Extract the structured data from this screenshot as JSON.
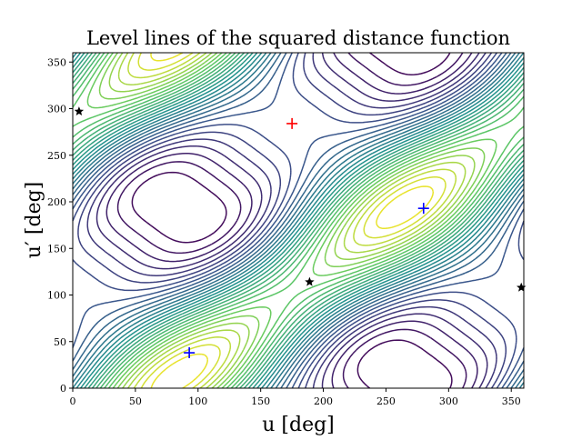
{
  "chart_data": {
    "type": "contour",
    "title": "Level lines of the squared distance function",
    "xlabel": "u [deg]",
    "ylabel": "u′ [deg]",
    "xlim": [
      0,
      360
    ],
    "ylim": [
      0,
      360
    ],
    "xticks": [
      0,
      50,
      100,
      150,
      200,
      250,
      300,
      350
    ],
    "yticks": [
      0,
      50,
      100,
      150,
      200,
      250,
      300,
      350
    ],
    "grid": false,
    "colormap": "viridis",
    "levels": 30,
    "maximum": {
      "u": 175,
      "u_prime": 284,
      "marker": "plus",
      "color": "#ff0000"
    },
    "minima": [
      {
        "u": 93,
        "u_prime": 38,
        "marker": "plus",
        "color": "#0000ff"
      },
      {
        "u": 280,
        "u_prime": 193,
        "marker": "plus",
        "color": "#0000ff"
      }
    ],
    "stars": [
      {
        "u": 5,
        "u_prime": 297,
        "marker": "star",
        "color": "#000000"
      },
      {
        "u": 189,
        "u_prime": 114,
        "marker": "star",
        "color": "#000000"
      },
      {
        "u": 358,
        "u_prime": 108,
        "marker": "star",
        "color": "#000000"
      }
    ]
  }
}
